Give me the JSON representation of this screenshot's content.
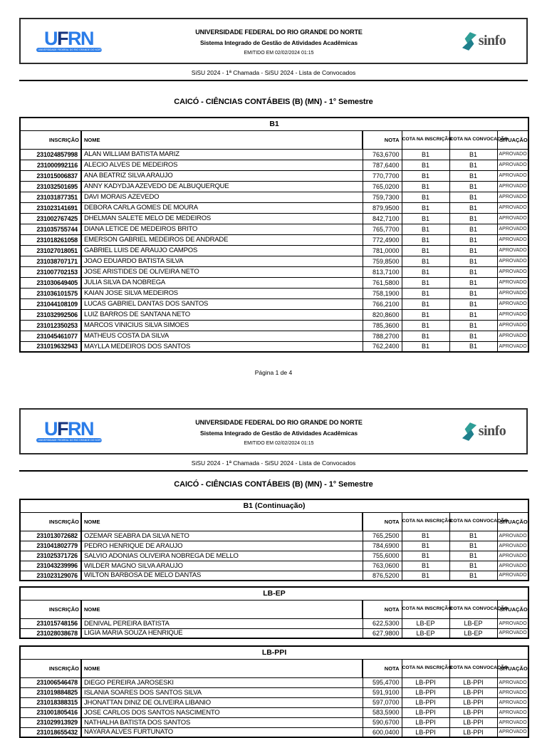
{
  "header": {
    "university": "UNIVERSIDADE FEDERAL DO RIO GRANDE DO NORTE",
    "system": "Sistema Integrado de Gestão de Atividades Acadêmicas",
    "emitted": "EMITIDO EM 02/02/2024 01:15",
    "sisu_line": "SiSU 2024 - 1ª Chamada - SiSU 2024 - Lista de Convocados",
    "ufrn_logo_text": "UFRN",
    "ufrn_logo_banner": "UNIVERSIDADE FEDERAL DO RIO GRANDE DO NORTE",
    "sinfo_logo_text": "sinfo",
    "sinfo_teal": "#2f9e97",
    "sinfo_dark_teal": "#1f7f8c",
    "ufrn_blue": "#2b7de9"
  },
  "document": {
    "title": "CAICÓ - CIÊNCIAS CONTÁBEIS (B) (MN) - 1° Semestre"
  },
  "columns": [
    "INSCRIÇÃO",
    "NOME",
    "NOTA",
    "COTA NA INSCRIÇÃO",
    "COTA NA CONVOCAÇÃO",
    "SITUAÇÃO"
  ],
  "pages": [
    {
      "footer": "Página 1 de 4",
      "sections": [
        {
          "name": "B1",
          "rows": [
            [
              "231024857998",
              "ALAN WILLIAM BATISTA MARIZ",
              "763,6700",
              "B1",
              "B1",
              "APROVADO"
            ],
            [
              "231000992116",
              "ALECIO ALVES DE MEDEIROS",
              "787,6400",
              "B1",
              "B1",
              "APROVADO"
            ],
            [
              "231015006837",
              "ANA BEATRIZ SILVA ARAUJO",
              "770,7700",
              "B1",
              "B1",
              "APROVADO"
            ],
            [
              "231032501695",
              "ANNY KADYDJA AZEVEDO DE ALBUQUERQUE",
              "765,0200",
              "B1",
              "B1",
              "APROVADO"
            ],
            [
              "231031877351",
              "DAVI MORAIS AZEVEDO",
              "759,7300",
              "B1",
              "B1",
              "APROVADO"
            ],
            [
              "231023141691",
              "DEBORA CARLA GOMES DE MOURA",
              "879,9500",
              "B1",
              "B1",
              "APROVADO"
            ],
            [
              "231002767425",
              "DHELMAN SALETE MELO DE MEDEIROS",
              "842,7100",
              "B1",
              "B1",
              "APROVADO"
            ],
            [
              "231035755744",
              "DIANA LETICE DE MEDEIROS BRITO",
              "765,7700",
              "B1",
              "B1",
              "APROVADO"
            ],
            [
              "231018261058",
              "EMERSON GABRIEL MEDEIROS DE ANDRADE",
              "772,4900",
              "B1",
              "B1",
              "APROVADO"
            ],
            [
              "231027018051",
              "GABRIEL LUIS DE ARAUJO CAMPOS",
              "781,0000",
              "B1",
              "B1",
              "APROVADO"
            ],
            [
              "231038707171",
              "JOAO EDUARDO BATISTA SILVA",
              "759,8500",
              "B1",
              "B1",
              "APROVADO"
            ],
            [
              "231007702153",
              "JOSE ARISTIDES DE OLIVEIRA NETO",
              "813,7100",
              "B1",
              "B1",
              "APROVADO"
            ],
            [
              "231030649405",
              "JULIA SILVA DA NOBREGA",
              "761,5800",
              "B1",
              "B1",
              "APROVADO"
            ],
            [
              "231036101575",
              "KAIAN JOSE SILVA MEDEIROS",
              "758,1900",
              "B1",
              "B1",
              "APROVADO"
            ],
            [
              "231044108109",
              "LUCAS GABRIEL DANTAS DOS SANTOS",
              "766,2100",
              "B1",
              "B1",
              "APROVADO"
            ],
            [
              "231032992506",
              "LUIZ BARROS DE SANTANA NETO",
              "820,8600",
              "B1",
              "B1",
              "APROVADO"
            ],
            [
              "231012350253",
              "MARCOS VINICIUS SILVA SIMOES",
              "785,3600",
              "B1",
              "B1",
              "APROVADO"
            ],
            [
              "231045461077",
              "MATHEUS COSTA DA SILVA",
              "788,2700",
              "B1",
              "B1",
              "APROVADO"
            ],
            [
              "231019632943",
              "MAYLLA MEDEIROS DOS SANTOS",
              "762,2400",
              "B1",
              "B1",
              "APROVADO"
            ]
          ]
        }
      ]
    },
    {
      "footer": null,
      "sections": [
        {
          "name": "B1 (Continuação)",
          "rows": [
            [
              "231013072682",
              "OZEMAR SEABRA DA SILVA NETO",
              "765,2500",
              "B1",
              "B1",
              "APROVADO"
            ],
            [
              "231041802779",
              "PEDRO HENRIQUE DE ARAUJO",
              "784,6900",
              "B1",
              "B1",
              "APROVADO"
            ],
            [
              "231025371726",
              "SALVIO ADONIAS OLIVEIRA NOBREGA DE MELLO",
              "755,6000",
              "B1",
              "B1",
              "APROVADO"
            ],
            [
              "231043239996",
              "WILDER MAGNO SILVA ARAUJO",
              "763,0600",
              "B1",
              "B1",
              "APROVADO"
            ],
            [
              "231023129076",
              "WILTON BARBOSA DE MELO DANTAS",
              "876,5200",
              "B1",
              "B1",
              "APROVADO"
            ]
          ]
        },
        {
          "name": "LB-EP",
          "rows": [
            [
              "231015748156",
              "DENIVAL PEREIRA BATISTA",
              "622,5300",
              "LB-EP",
              "LB-EP",
              "APROVADO"
            ],
            [
              "231028038678",
              "LIGIA MARIA SOUZA HENRIQUE",
              "627,9800",
              "LB-EP",
              "LB-EP",
              "APROVADO"
            ]
          ]
        },
        {
          "name": "LB-PPI",
          "rows": [
            [
              "231006546478",
              "DIEGO PEREIRA JAROSESKI",
              "595,4700",
              "LB-PPI",
              "LB-PPI",
              "APROVADO"
            ],
            [
              "231019884825",
              "ISLANIA SOARES DOS SANTOS SILVA",
              "591,9100",
              "LB-PPI",
              "LB-PPI",
              "APROVADO"
            ],
            [
              "231018388315",
              "JHONATTAN DINIZ DE OLIVEIRA LIBANIO",
              "597,0700",
              "LB-PPI",
              "LB-PPI",
              "APROVADO"
            ],
            [
              "231001805416",
              "JOSE CARLOS DOS SANTOS NASCIMENTO",
              "583,5900",
              "LB-PPI",
              "LB-PPI",
              "APROVADO"
            ],
            [
              "231029913929",
              "NATHALHA BATISTA DOS SANTOS",
              "590,6700",
              "LB-PPI",
              "LB-PPI",
              "APROVADO"
            ],
            [
              "231018655432",
              "NAYARA ALVES FURTUNATO",
              "600,0400",
              "LB-PPI",
              "LB-PPI",
              "APROVADO"
            ]
          ]
        }
      ]
    }
  ]
}
